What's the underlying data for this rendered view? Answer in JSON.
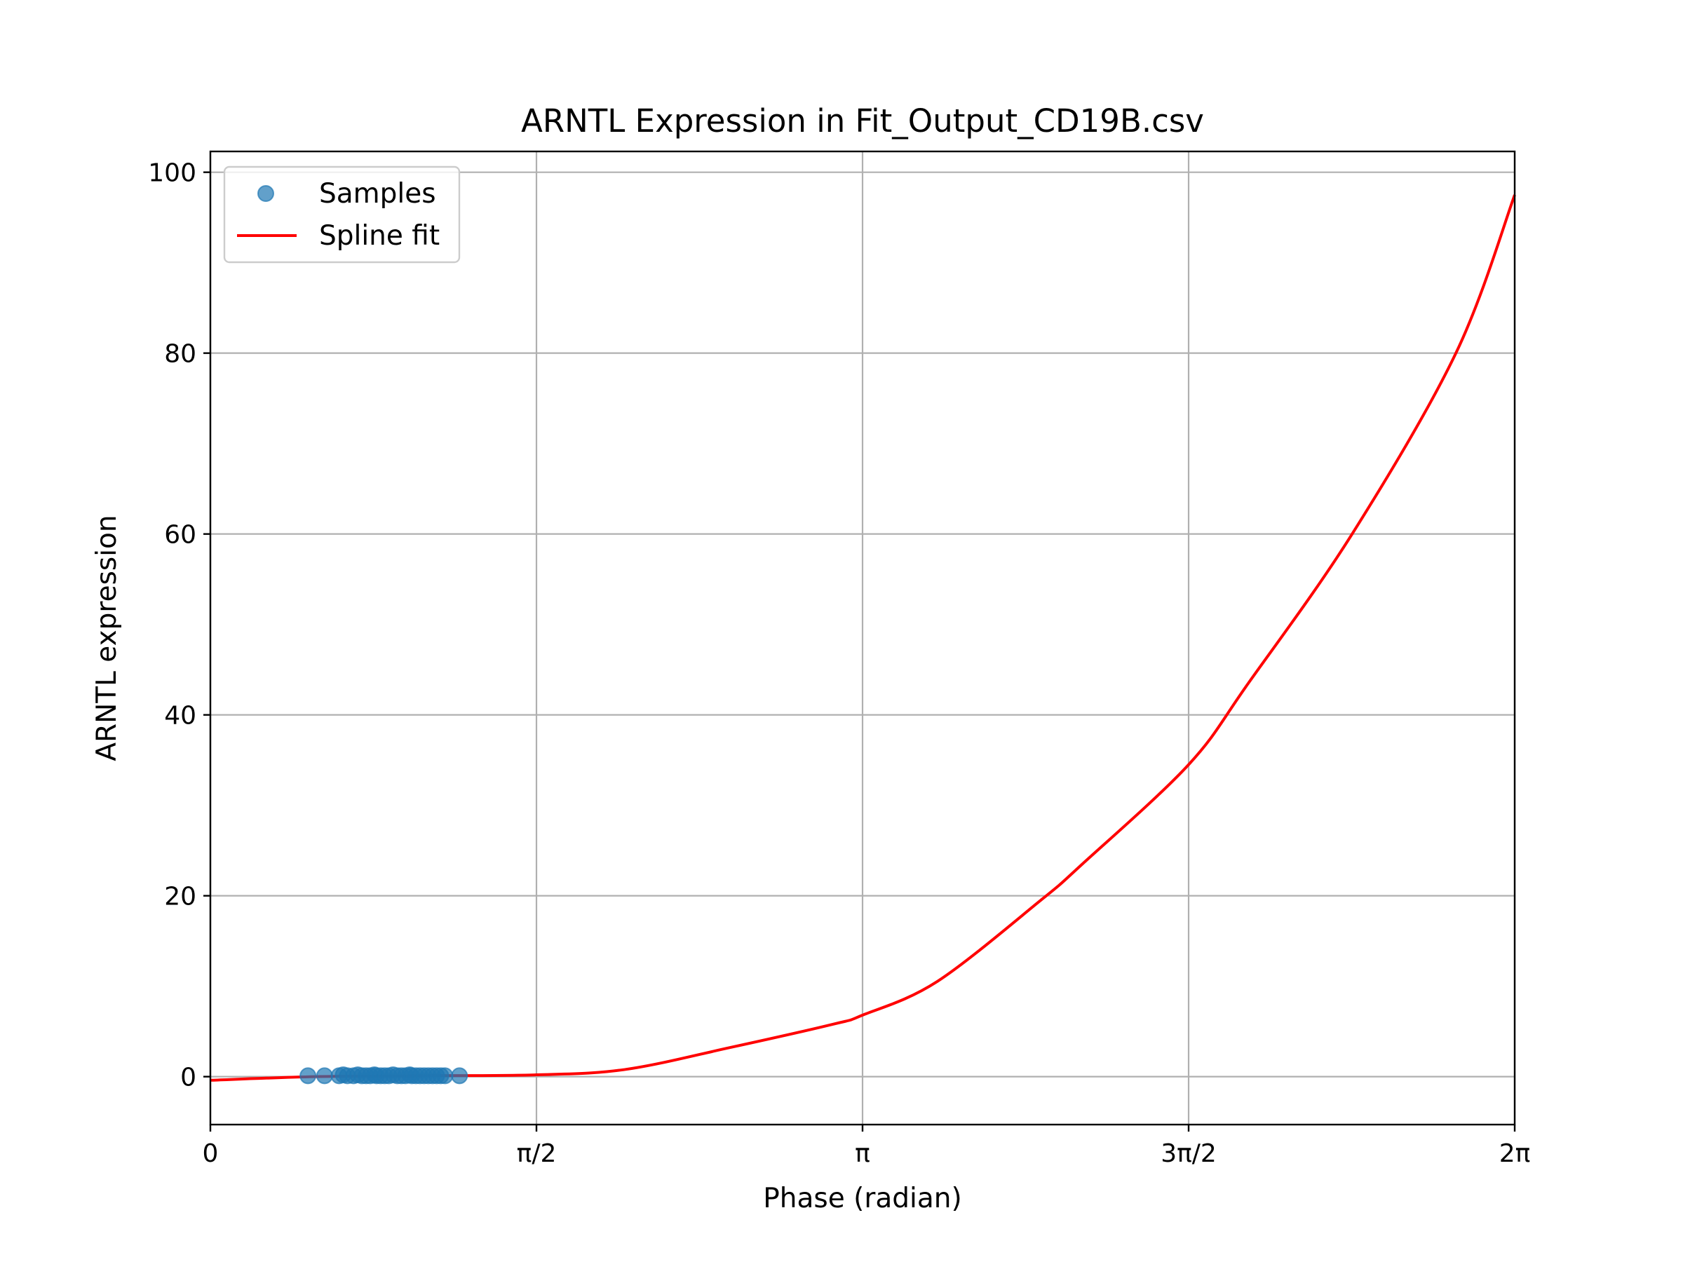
{
  "chart_data": {
    "type": "scatter+line",
    "title": "ARNTL Expression in Fit_Output_CD19B.csv",
    "xlabel": "Phase (radian)",
    "ylabel": "ARNTL expression",
    "xlim": [
      0,
      6.2832
    ],
    "ylim": [
      -5.3,
      102.3
    ],
    "grid": true,
    "legend_position": "top-left",
    "x_ticks": [
      {
        "value": 0,
        "label": "0"
      },
      {
        "value": 1.5708,
        "label": "π/2"
      },
      {
        "value": 3.1416,
        "label": "π"
      },
      {
        "value": 4.7124,
        "label": "3π/2"
      },
      {
        "value": 6.2832,
        "label": "2π"
      }
    ],
    "y_ticks": [
      {
        "value": 0,
        "label": "0"
      },
      {
        "value": 20,
        "label": "20"
      },
      {
        "value": 40,
        "label": "40"
      },
      {
        "value": 60,
        "label": "60"
      },
      {
        "value": 80,
        "label": "80"
      },
      {
        "value": 100,
        "label": "100"
      }
    ],
    "series": [
      {
        "name": "Samples",
        "kind": "scatter",
        "color": "#1f77b4",
        "opacity": 0.7,
        "x": [
          0.47,
          0.55,
          0.62,
          0.64,
          0.66,
          0.69,
          0.71,
          0.73,
          0.75,
          0.77,
          0.79,
          0.8,
          0.82,
          0.84,
          0.86,
          0.88,
          0.9,
          0.92,
          0.94,
          0.96,
          0.97,
          0.99,
          1.01,
          1.03,
          1.05,
          1.07,
          1.09,
          1.11,
          1.13,
          1.2
        ],
        "y": [
          0.1,
          0.1,
          0.1,
          0.2,
          0.1,
          0.1,
          0.2,
          0.1,
          0.1,
          0.1,
          0.2,
          0.1,
          0.1,
          0.1,
          0.1,
          0.2,
          0.1,
          0.1,
          0.1,
          0.2,
          0.1,
          0.1,
          0.1,
          0.1,
          0.1,
          0.1,
          0.1,
          0.1,
          0.1,
          0.1
        ]
      },
      {
        "name": "Spline fit",
        "kind": "line",
        "color": "#ff0000",
        "x": [
          0,
          0.5,
          1.0,
          1.5708,
          2.0,
          2.5,
          3.0,
          3.1416,
          3.5,
          4.0,
          4.2,
          4.7124,
          5.0,
          5.5,
          6.0,
          6.2832
        ],
        "y": [
          -0.4,
          0.0,
          0.1,
          0.2,
          0.8,
          3.2,
          5.8,
          6.8,
          10.5,
          19.5,
          23.5,
          34.5,
          43.5,
          60.0,
          80.0,
          97.5
        ]
      }
    ]
  }
}
